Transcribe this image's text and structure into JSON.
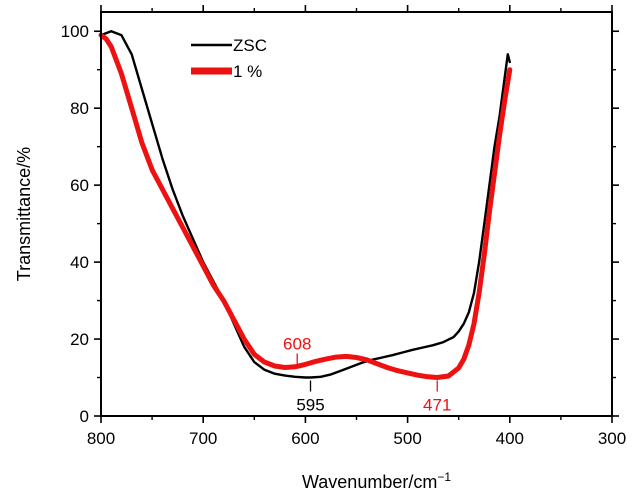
{
  "chart_data": {
    "type": "line",
    "xlabel": "Wavenumber/cm",
    "xlabel_superscript": "−1",
    "ylabel": "Transmittance/%",
    "xlim": [
      800,
      300
    ],
    "ylim": [
      0,
      105
    ],
    "x_reversed": true,
    "grid": false,
    "legend_position": "top-left",
    "x_ticks": [
      800,
      700,
      600,
      500,
      400,
      300
    ],
    "x_tick_labels": [
      "800",
      "700",
      "600",
      "500",
      "400",
      "300"
    ],
    "y_ticks": [
      0,
      20,
      40,
      60,
      80,
      100
    ],
    "y_tick_labels": [
      "0",
      "20",
      "40",
      "60",
      "80",
      "100"
    ],
    "series": [
      {
        "name": "ZSC",
        "color": "#000000",
        "x": [
          800,
          790,
          780,
          770,
          760,
          750,
          740,
          730,
          720,
          710,
          700,
          690,
          680,
          670,
          660,
          650,
          640,
          630,
          620,
          610,
          600,
          595,
          585,
          575,
          565,
          555,
          545,
          535,
          525,
          515,
          505,
          495,
          485,
          475,
          465,
          455,
          450,
          445,
          440,
          435,
          430,
          425,
          420,
          415,
          410,
          405,
          402,
          400
        ],
        "y": [
          99,
          100,
          99,
          94,
          85,
          76,
          67,
          59,
          52,
          46,
          40,
          35,
          30,
          24,
          18,
          14,
          12,
          11,
          10.5,
          10.2,
          10,
          10,
          10.2,
          10.8,
          11.8,
          12.8,
          13.8,
          14.6,
          15.2,
          15.8,
          16.5,
          17.2,
          17.8,
          18.4,
          19.2,
          20.5,
          22,
          24,
          27,
          32,
          40,
          50,
          60,
          70,
          78,
          88,
          94,
          92
        ]
      },
      {
        "name": "1 %",
        "color": "#ee1111",
        "x": [
          800,
          795,
          790,
          780,
          770,
          760,
          750,
          740,
          730,
          720,
          710,
          700,
          690,
          680,
          670,
          660,
          650,
          640,
          630,
          620,
          610,
          600,
          590,
          580,
          570,
          560,
          550,
          540,
          530,
          520,
          510,
          500,
          490,
          480,
          471,
          460,
          450,
          445,
          440,
          435,
          430,
          425,
          420,
          415,
          410,
          405,
          400
        ],
        "y": [
          99,
          98,
          96,
          89,
          80,
          71,
          64,
          59,
          54,
          49,
          44,
          39,
          34,
          30,
          25,
          20,
          16,
          14,
          13,
          12.6,
          12.8,
          13.4,
          14.2,
          14.8,
          15.3,
          15.5,
          15.2,
          14.6,
          13.6,
          12.6,
          11.8,
          11.2,
          10.6,
          10.2,
          10,
          10.4,
          12.5,
          14.8,
          18.5,
          24,
          32,
          42,
          53,
          63,
          73,
          82,
          90
        ]
      }
    ],
    "annotations": [
      {
        "text": "608",
        "x": 608,
        "color": "#ee1111",
        "placement": "above",
        "y": 12.6
      },
      {
        "text": "595",
        "x": 595,
        "color": "#000000",
        "placement": "below",
        "y": 10
      },
      {
        "text": "471",
        "x": 471,
        "color": "#ee1111",
        "placement": "below",
        "y": 10
      }
    ]
  }
}
